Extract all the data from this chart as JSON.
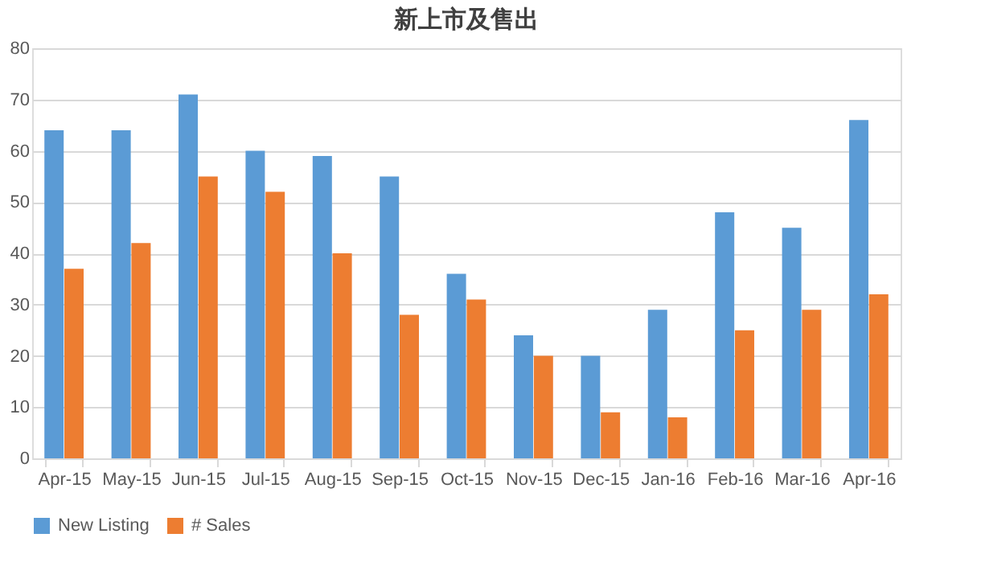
{
  "chart_data": {
    "type": "bar",
    "title": "新上市及售出",
    "categories": [
      "Apr-15",
      "May-15",
      "Jun-15",
      "Jul-15",
      "Aug-15",
      "Sep-15",
      "Oct-15",
      "Nov-15",
      "Dec-15",
      "Jan-16",
      "Feb-16",
      "Mar-16",
      "Apr-16"
    ],
    "series": [
      {
        "name": "New Listing",
        "color": "#5b9bd5",
        "values": [
          64,
          64,
          71,
          60,
          59,
          55,
          36,
          24,
          20,
          29,
          48,
          45,
          66
        ]
      },
      {
        "name": "# Sales",
        "color": "#ed7d31",
        "values": [
          37,
          42,
          55,
          52,
          40,
          28,
          31,
          20,
          9,
          8,
          25,
          29,
          32
        ]
      }
    ],
    "ylim": [
      0,
      80
    ],
    "yticks": [
      0,
      10,
      20,
      30,
      40,
      50,
      60,
      70,
      80
    ],
    "grid": "y",
    "legend": "bottom"
  }
}
